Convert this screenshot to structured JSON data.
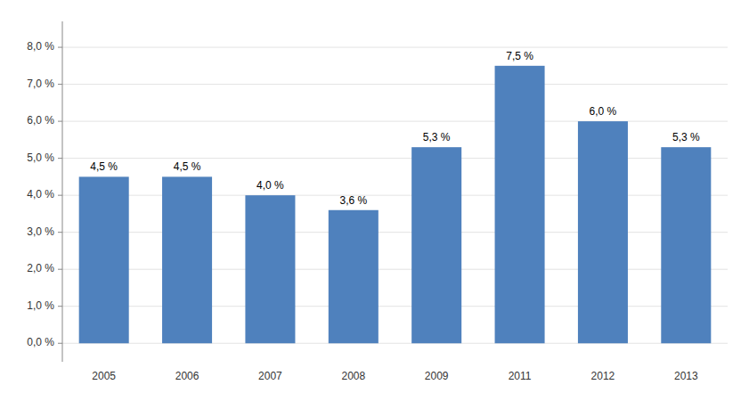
{
  "chart_data": {
    "type": "bar",
    "categories": [
      "2005",
      "2006",
      "2007",
      "2008",
      "2009",
      "2011",
      "2012",
      "2013"
    ],
    "values": [
      4.5,
      4.5,
      4.0,
      3.6,
      5.3,
      7.5,
      6.0,
      5.3
    ],
    "value_labels": [
      "4,5 %",
      "4,5 %",
      "4,0 %",
      "3,6 %",
      "5,3 %",
      "7,5 %",
      "6,0 %",
      "5,3 %"
    ],
    "color": "#4F81BD",
    "ylim": [
      -0.5,
      8.7
    ],
    "yticks": [
      {
        "value": 0.0,
        "label": "0,0 %"
      },
      {
        "value": 1.0,
        "label": "1,0 %"
      },
      {
        "value": 2.0,
        "label": "2,0 %"
      },
      {
        "value": 3.0,
        "label": "3,0 %"
      },
      {
        "value": 4.0,
        "label": "4,0 %"
      },
      {
        "value": 5.0,
        "label": "5,0 %"
      },
      {
        "value": 6.0,
        "label": "6,0 %"
      },
      {
        "value": 7.0,
        "label": "7,0 %"
      },
      {
        "value": 8.0,
        "label": "8,0 %"
      }
    ],
    "grid": true,
    "data_labels": true
  }
}
